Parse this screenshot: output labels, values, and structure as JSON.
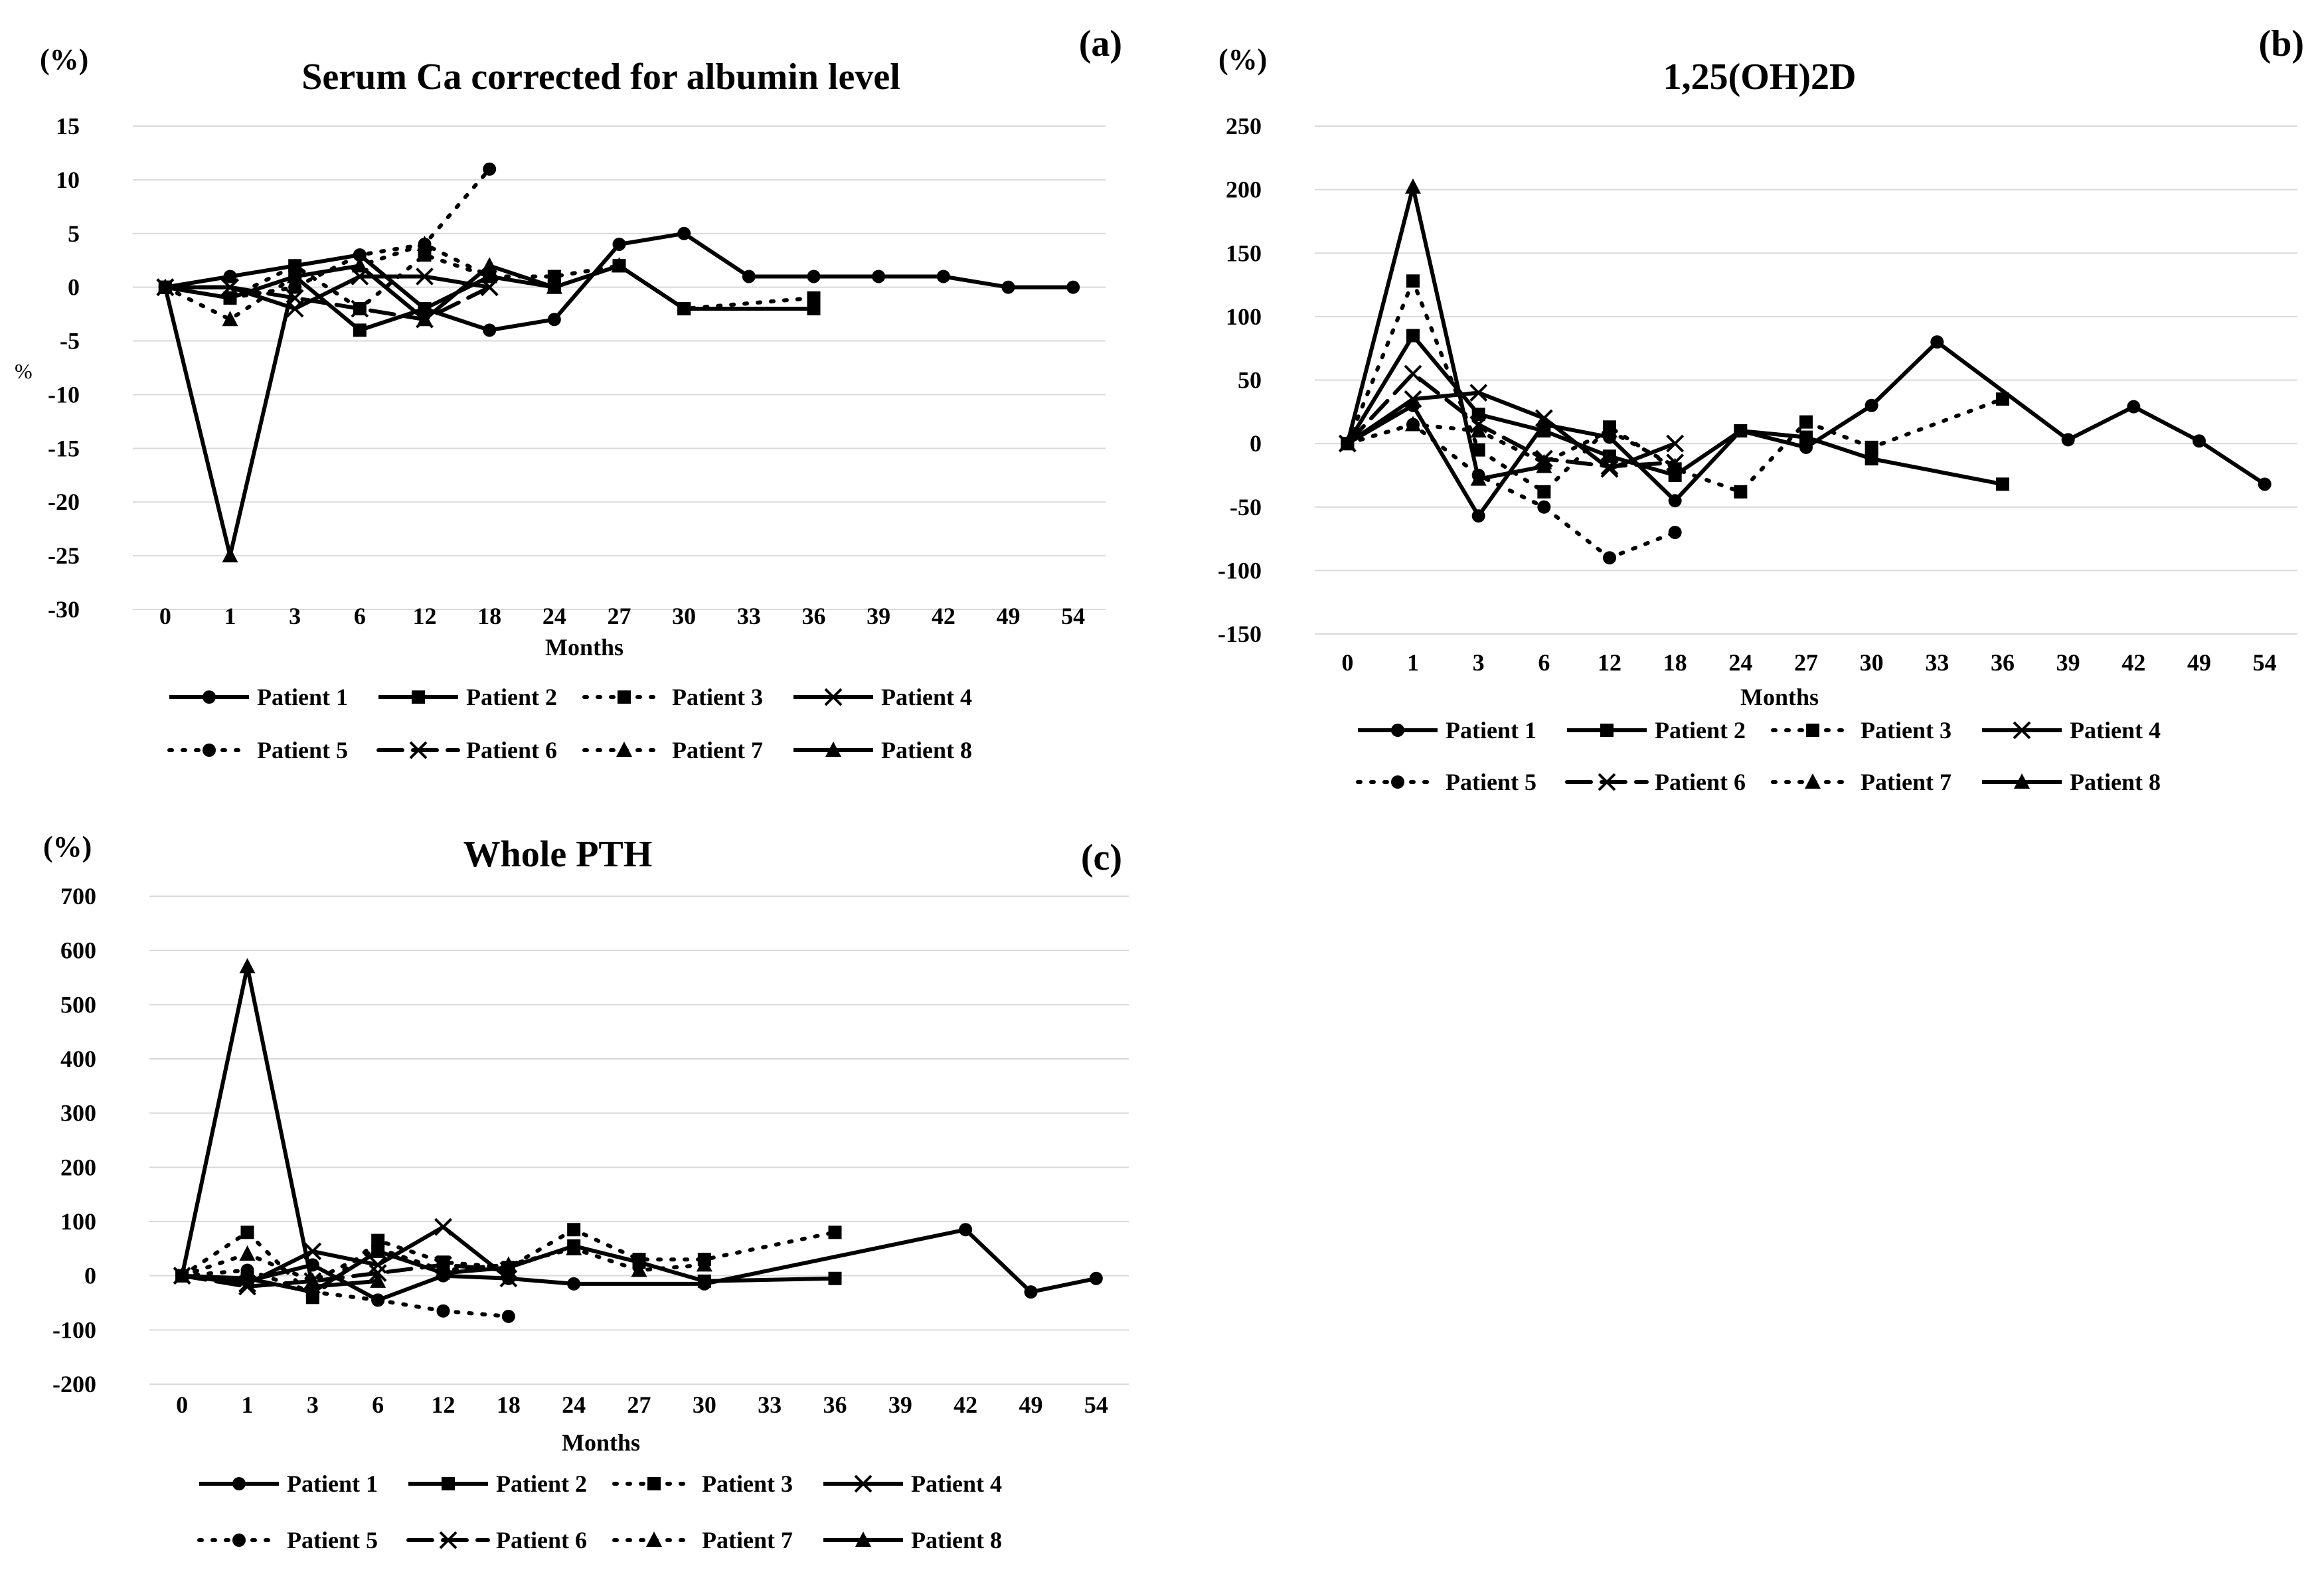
{
  "series_names": [
    "Patient 1",
    "Patient 2",
    "Patient 3",
    "Patient 4",
    "Patient 5",
    "Patient 6",
    "Patient 7",
    "Patient 8"
  ],
  "chart_data": [
    {
      "type": "line",
      "panel": "(a)",
      "title": "Serum Ca corrected for albumin level",
      "unit": "(%)",
      "side_ylabel": "%",
      "xlabel": "Months",
      "categories": [
        "0",
        "1",
        "3",
        "6",
        "12",
        "18",
        "24",
        "27",
        "30",
        "33",
        "36",
        "39",
        "42",
        "49",
        "54"
      ],
      "yticks": [
        "15",
        "10",
        "5",
        "0",
        "-5",
        "-10",
        "-15",
        "-20",
        "-25",
        "-30"
      ],
      "ylim": [
        -30,
        15
      ],
      "series": [
        {
          "name": "Patient 1",
          "values": [
            0,
            1,
            2,
            3,
            -2,
            -4,
            -3,
            4,
            5,
            1,
            1,
            1,
            1,
            0,
            0
          ]
        },
        {
          "name": "Patient 2",
          "values": [
            0,
            -1,
            1,
            -4,
            -2,
            1,
            0,
            2,
            -2,
            null,
            -2,
            null,
            null,
            null,
            null
          ]
        },
        {
          "name": "Patient 3",
          "values": [
            0,
            -1,
            2,
            -2,
            3,
            1,
            1,
            2,
            -2,
            null,
            -1,
            null,
            null,
            null,
            null
          ]
        },
        {
          "name": "Patient 4",
          "values": [
            0,
            0,
            -2,
            1,
            1,
            0,
            null,
            null,
            null,
            null,
            null,
            null,
            null,
            null,
            null
          ]
        },
        {
          "name": "Patient 5",
          "values": [
            0,
            -1,
            0,
            3,
            4,
            11,
            null,
            null,
            null,
            null,
            null,
            null,
            null,
            null,
            null
          ]
        },
        {
          "name": "Patient 6",
          "values": [
            0,
            0,
            -1,
            -2,
            -3,
            0,
            null,
            null,
            null,
            null,
            null,
            null,
            null,
            null,
            null
          ]
        },
        {
          "name": "Patient 7",
          "values": [
            0,
            -3,
            1,
            2,
            4,
            1,
            null,
            null,
            null,
            null,
            null,
            null,
            null,
            null,
            null
          ]
        },
        {
          "name": "Patient 8",
          "values": [
            0,
            -25,
            1,
            2,
            -3,
            2,
            0,
            2,
            null,
            null,
            null,
            null,
            null,
            null,
            null
          ]
        }
      ]
    },
    {
      "type": "line",
      "panel": "(b)",
      "title": "1,25(OH)2D",
      "unit": "(%)",
      "side_ylabel": "",
      "xlabel": "Months",
      "categories": [
        "0",
        "1",
        "3",
        "6",
        "12",
        "18",
        "24",
        "27",
        "30",
        "33",
        "36",
        "39",
        "42",
        "49",
        "54"
      ],
      "yticks": [
        "250",
        "200",
        "150",
        "100",
        "50",
        "0",
        "-50",
        "-100",
        "-150"
      ],
      "ylim": [
        -150,
        250
      ],
      "series": [
        {
          "name": "Patient 1",
          "values": [
            0,
            30,
            -57,
            15,
            5,
            -45,
            10,
            -3,
            30,
            80,
            null,
            3,
            29,
            2,
            -32
          ]
        },
        {
          "name": "Patient 2",
          "values": [
            0,
            85,
            23,
            10,
            -10,
            -25,
            10,
            5,
            -12,
            null,
            -32,
            null,
            null,
            null,
            null
          ]
        },
        {
          "name": "Patient 3",
          "values": [
            0,
            128,
            -5,
            -38,
            13,
            -20,
            -38,
            17,
            -3,
            null,
            35,
            null,
            null,
            null,
            null
          ]
        },
        {
          "name": "Patient 4",
          "values": [
            0,
            35,
            40,
            20,
            -20,
            0,
            null,
            null,
            null,
            null,
            null,
            null,
            null,
            null,
            null
          ]
        },
        {
          "name": "Patient 5",
          "values": [
            0,
            15,
            -25,
            -50,
            -90,
            -70,
            null,
            null,
            null,
            null,
            null,
            null,
            null,
            null,
            null
          ]
        },
        {
          "name": "Patient 6",
          "values": [
            0,
            55,
            15,
            -12,
            -18,
            -15,
            null,
            null,
            null,
            null,
            null,
            null,
            null,
            null,
            null
          ]
        },
        {
          "name": "Patient 7",
          "values": [
            0,
            15,
            10,
            -15,
            10,
            -18,
            null,
            null,
            null,
            null,
            null,
            null,
            null,
            null,
            null
          ]
        },
        {
          "name": "Patient 8",
          "values": [
            0,
            202,
            -28,
            -18,
            null,
            null,
            null,
            null,
            null,
            null,
            null,
            null,
            null,
            null,
            null
          ]
        }
      ]
    },
    {
      "type": "line",
      "panel": "(c)",
      "title": "Whole PTH",
      "unit": "(%)",
      "side_ylabel": "",
      "xlabel": "Months",
      "categories": [
        "0",
        "1",
        "3",
        "6",
        "12",
        "18",
        "24",
        "27",
        "30",
        "33",
        "36",
        "39",
        "42",
        "49",
        "54"
      ],
      "yticks": [
        "700",
        "600",
        "500",
        "400",
        "300",
        "200",
        "100",
        "0",
        "-100",
        "-200"
      ],
      "ylim": [
        -200,
        700
      ],
      "series": [
        {
          "name": "Patient 1",
          "values": [
            0,
            -10,
            20,
            -45,
            0,
            -5,
            -15,
            null,
            -15,
            null,
            null,
            null,
            85,
            -30,
            -5
          ]
        },
        {
          "name": "Patient 2",
          "values": [
            0,
            -5,
            -30,
            45,
            5,
            15,
            55,
            25,
            -10,
            null,
            -5,
            null,
            null,
            null,
            null
          ]
        },
        {
          "name": "Patient 3",
          "values": [
            0,
            80,
            -40,
            65,
            25,
            15,
            85,
            30,
            30,
            null,
            80,
            null,
            null,
            null,
            null
          ]
        },
        {
          "name": "Patient 4",
          "values": [
            0,
            -15,
            45,
            20,
            90,
            -5,
            null,
            null,
            null,
            null,
            null,
            null,
            null,
            null,
            null
          ]
        },
        {
          "name": "Patient 5",
          "values": [
            0,
            10,
            -30,
            -45,
            -65,
            -75,
            null,
            null,
            null,
            null,
            null,
            null,
            null,
            null,
            null
          ]
        },
        {
          "name": "Patient 6",
          "values": [
            0,
            -20,
            -10,
            5,
            20,
            10,
            null,
            null,
            null,
            null,
            null,
            null,
            null,
            null,
            null
          ]
        },
        {
          "name": "Patient 7",
          "values": [
            0,
            40,
            -10,
            50,
            10,
            20,
            50,
            10,
            20,
            null,
            null,
            null,
            null,
            null,
            null
          ]
        },
        {
          "name": "Patient 8",
          "values": [
            0,
            570,
            -20,
            -10,
            null,
            null,
            null,
            null,
            null,
            null,
            null,
            null,
            null,
            null,
            null
          ]
        }
      ]
    }
  ]
}
